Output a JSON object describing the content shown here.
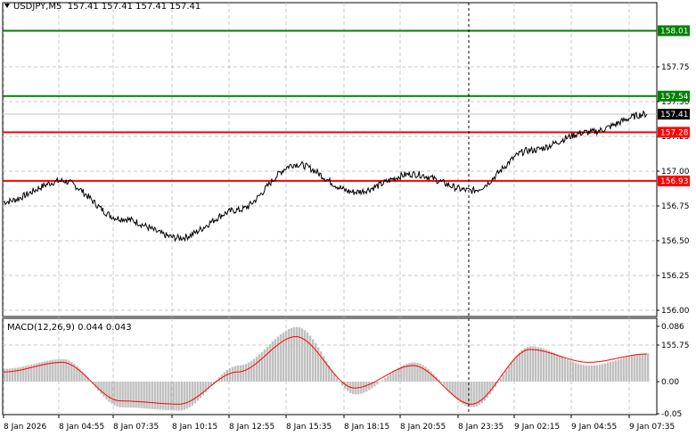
{
  "header": {
    "symbol": "USDJPY,M5",
    "ohlc": "157.41 157.41 157.41 157.41"
  },
  "price_axis": {
    "ticks": [
      "157.75",
      "157.50",
      "157.25",
      "157.00",
      "156.75",
      "156.50",
      "156.25",
      "156.00",
      "155.75"
    ]
  },
  "levels": [
    {
      "label": "158.01",
      "price": 158.01,
      "color": "#008000"
    },
    {
      "label": "157.54",
      "price": 157.54,
      "color": "#008000"
    },
    {
      "label": "157.28",
      "price": 157.28,
      "color": "#ff0000"
    },
    {
      "label": "156.93",
      "price": 156.93,
      "color": "#ff0000"
    }
  ],
  "current_price": {
    "label": "157.41",
    "price": 157.41
  },
  "macd": {
    "title": "MACD(12,26,9) 0.044 0.043",
    "ticks": [
      "0.086",
      "0.00",
      "-0.05"
    ]
  },
  "time_axis": {
    "labels": [
      "8 Jan 2026",
      "8 Jan 04:55",
      "8 Jan 07:35",
      "8 Jan 10:15",
      "8 Jan 12:55",
      "8 Jan 15:35",
      "8 Jan 18:15",
      "8 Jan 20:55",
      "8 Jan 23:35",
      "9 Jan 02:15",
      "9 Jan 04:55",
      "9 Jan 07:35"
    ]
  },
  "colors": {
    "background": "#ffffff",
    "grid": "#c8c8c8",
    "price_line": "#000000",
    "macd_histogram": "#c0c0c0",
    "macd_signal": "#ff0000",
    "current_price_tag": "#000000"
  },
  "chart_data": {
    "type": "line",
    "title": "USDJPY,M5",
    "x": [
      "8 Jan 2026",
      "8 Jan 04:55",
      "8 Jan 07:35",
      "8 Jan 10:15",
      "8 Jan 12:55",
      "8 Jan 15:35",
      "8 Jan 18:15",
      "8 Jan 20:55",
      "8 Jan 23:35",
      "9 Jan 02:15",
      "9 Jan 04:55",
      "9 Jan 07:35"
    ],
    "ylim": [
      155.7,
      158.05
    ],
    "series": [
      {
        "values": [
          156.78,
          156.93,
          156.66,
          156.52,
          156.72,
          157.05,
          156.85,
          156.98,
          156.86,
          157.15,
          157.28,
          157.41
        ]
      }
    ],
    "macd": {
      "params": "12,26,9",
      "value": 0.044,
      "signal": 0.043,
      "ylim": [
        -0.055,
        0.09
      ],
      "histogram": [
        0.02,
        0.035,
        -0.04,
        -0.045,
        0.025,
        0.085,
        -0.02,
        0.03,
        -0.04,
        0.055,
        0.025,
        0.044
      ],
      "signal_line": [
        0.015,
        0.03,
        -0.03,
        -0.035,
        0.015,
        0.07,
        -0.01,
        0.025,
        -0.035,
        0.05,
        0.03,
        0.043
      ]
    }
  }
}
